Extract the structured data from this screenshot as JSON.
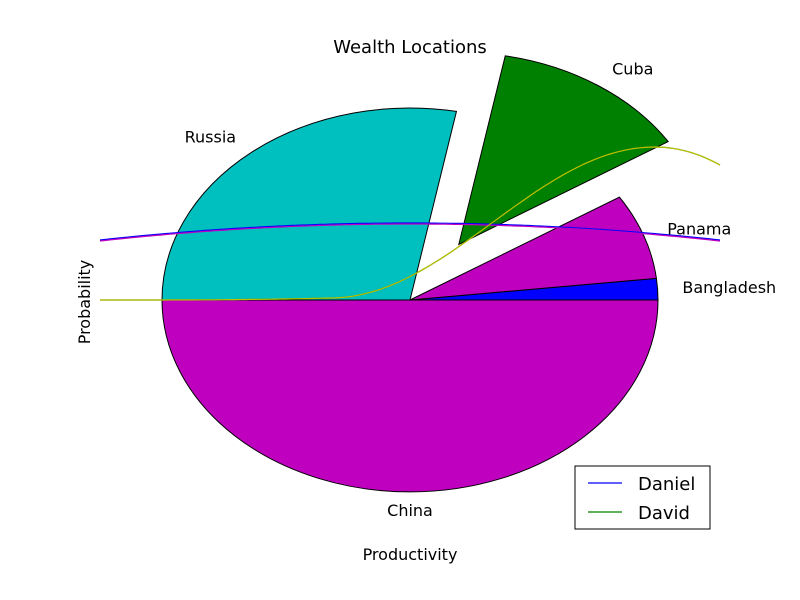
{
  "chart_data": {
    "type": "pie",
    "title": "Wealth Locations",
    "xlabel": "Productivity",
    "ylabel": "Probability",
    "slices": [
      {
        "label": "Bangladesh",
        "value": 1.8,
        "color": "#0000ff",
        "explode": 0
      },
      {
        "label": "Panama",
        "value": 7.2,
        "color": "#bf00bf",
        "explode": 0
      },
      {
        "label": "Cuba",
        "value": 13.0,
        "color": "#008000",
        "explode": 0.35
      },
      {
        "label": "Russia",
        "value": 28.0,
        "color": "#00bfbf",
        "explode": 0
      },
      {
        "label": "China",
        "value": 50.0,
        "color": "#bf00bf",
        "explode": 0
      }
    ],
    "lines": [
      {
        "name": "Daniel",
        "color": "#0000ff",
        "legend": true
      },
      {
        "name": "David",
        "color": "#008000",
        "legend": true
      },
      {
        "color": "#bf00bf",
        "legend": false
      },
      {
        "color": "#bfbf00",
        "legend": false
      }
    ],
    "legend_position": "lower-right",
    "grid": false
  }
}
